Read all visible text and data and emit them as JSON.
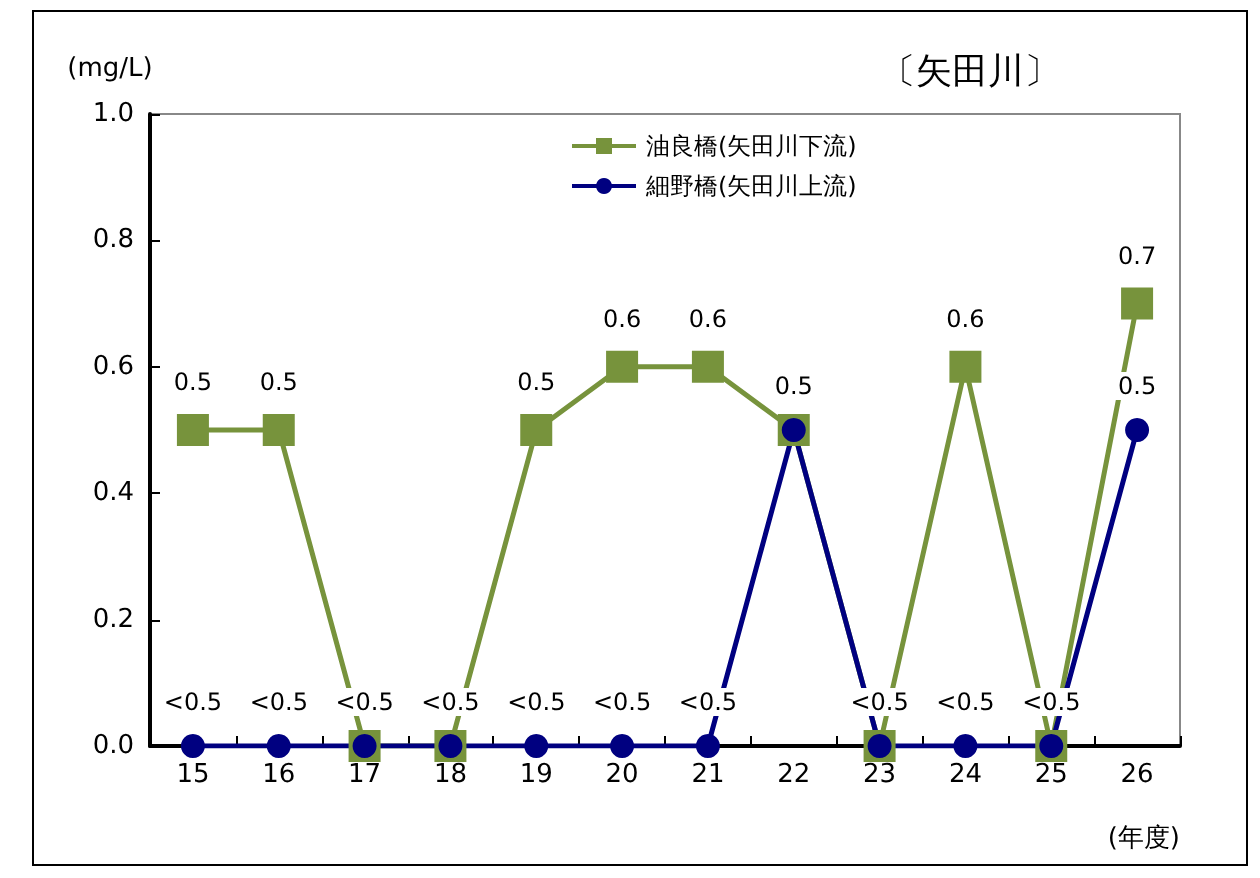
{
  "chart_data": {
    "type": "line",
    "title": "〔矢田川〕",
    "ylabel": "(mg/L)",
    "xlabel": "(年度)",
    "categories": [
      "15",
      "16",
      "17",
      "18",
      "19",
      "20",
      "21",
      "22",
      "23",
      "24",
      "25",
      "26"
    ],
    "series": [
      {
        "name": "油良橋(矢田川下流)",
        "color": "#77933c",
        "marker": "square",
        "values": [
          0.5,
          0.5,
          0,
          0,
          0.5,
          0.6,
          0.6,
          0.5,
          0,
          0.6,
          0,
          0.7
        ],
        "value_labels": [
          "0.5",
          "0.5",
          null,
          null,
          "0.5",
          "0.6",
          "0.6",
          null,
          null,
          "0.6",
          null,
          "0.7"
        ]
      },
      {
        "name": "細野橋(矢田川上流)",
        "color": "#000080",
        "marker": "circle",
        "values": [
          0,
          0,
          0,
          0,
          0,
          0,
          0,
          0.5,
          0,
          0,
          0,
          0.5
        ],
        "value_labels": [
          "<0.5",
          "<0.5",
          "<0.5",
          "<0.5",
          "<0.5",
          "<0.5",
          "<0.5",
          "0.5",
          "<0.5",
          "<0.5",
          "<0.5",
          "0.5"
        ]
      }
    ],
    "ylim": [
      0,
      1
    ],
    "yticks": [
      {
        "value": 0,
        "label": "0.0"
      },
      {
        "value": 0.2,
        "label": "0.2"
      },
      {
        "value": 0.4,
        "label": "0.4"
      },
      {
        "value": 0.6,
        "label": "0.6"
      },
      {
        "value": 0.8,
        "label": "0.8"
      },
      {
        "value": 1,
        "label": "1.0"
      }
    ],
    "grid": false,
    "legend": "top",
    "line_style": "solid"
  }
}
